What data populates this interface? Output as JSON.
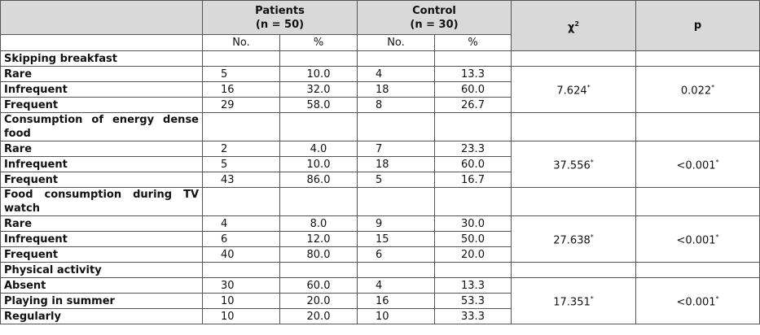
{
  "header": {
    "patients": {
      "name": "Patients",
      "n": "(n = 50)"
    },
    "control": {
      "name": "Control",
      "n": "(n = 30)"
    },
    "chi": {
      "symbol": "χ",
      "sup": "2"
    },
    "p": "p",
    "sub": [
      "No.",
      "%",
      "No.",
      "%"
    ]
  },
  "groups": [
    {
      "label": "Skipping breakfast",
      "rows": [
        {
          "label": "Rare",
          "values": [
            "5",
            "10.0",
            "4",
            "13.3"
          ]
        },
        {
          "label": "Infrequent",
          "values": [
            "16",
            "32.0",
            "18",
            "60.0"
          ]
        },
        {
          "label": "Frequent",
          "values": [
            "29",
            "58.0",
            "8",
            "26.7"
          ]
        }
      ],
      "chi": {
        "value": "7.624",
        "mark": "*"
      },
      "p": {
        "value": "0.022",
        "mark": "*"
      }
    },
    {
      "label": "Consumption of energy dense food",
      "rows": [
        {
          "label": "Rare",
          "values": [
            "2",
            "4.0",
            "7",
            "23.3"
          ]
        },
        {
          "label": "Infrequent",
          "values": [
            "5",
            "10.0",
            "18",
            "60.0"
          ]
        },
        {
          "label": "Frequent",
          "values": [
            "43",
            "86.0",
            "5",
            "16.7"
          ]
        }
      ],
      "chi": {
        "value": "37.556",
        "mark": "*"
      },
      "p": {
        "value": "<0.001",
        "mark": "*"
      }
    },
    {
      "label": "Food consumption during TV watch",
      "rows": [
        {
          "label": "Rare",
          "values": [
            "4",
            "8.0",
            "9",
            "30.0"
          ]
        },
        {
          "label": "Infrequent",
          "values": [
            "6",
            "12.0",
            "15",
            "50.0"
          ]
        },
        {
          "label": "Frequent",
          "values": [
            "40",
            "80.0",
            "6",
            "20.0"
          ]
        }
      ],
      "chi": {
        "value": "27.638",
        "mark": "*"
      },
      "p": {
        "value": "<0.001",
        "mark": "*"
      }
    },
    {
      "label": "Physical activity",
      "rows": [
        {
          "label": "Absent",
          "values": [
            "30",
            "60.0",
            "4",
            "13.3"
          ]
        },
        {
          "label": "Playing in summer",
          "values": [
            "10",
            "20.0",
            "16",
            "53.3"
          ]
        },
        {
          "label": "Regularly",
          "values": [
            "10",
            "20.0",
            "10",
            "33.3"
          ]
        }
      ],
      "chi": {
        "value": "17.351",
        "mark": "*"
      },
      "p": {
        "value": "<0.001",
        "mark": "*"
      }
    }
  ]
}
